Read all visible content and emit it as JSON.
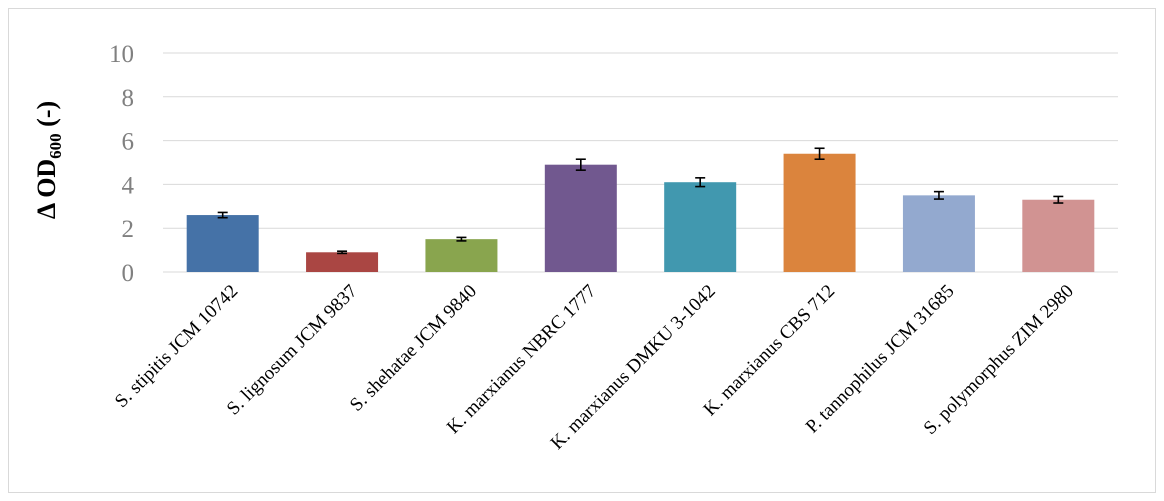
{
  "chart_data": {
    "type": "bar",
    "title": "",
    "xlabel": "",
    "ylabel": "Δ OD",
    "ylabel_subscript": "600",
    "ylabel_suffix": " (-)",
    "ylim": [
      0,
      10
    ],
    "yticks": [
      0,
      2,
      4,
      6,
      8,
      10
    ],
    "grid": true,
    "legend": "none",
    "categories": [
      "S. stipitis JCM 10742",
      "S. lignosum JCM 9837",
      "S. shehatae JCM 9840",
      "K. marxianus NBRC 1777",
      "K. marxianus DMKU 3-1042",
      "K. marxianus CBS 712",
      "P. tannophilus JCM 31685",
      "S. polymorphus ZIM 2980"
    ],
    "values": [
      2.6,
      0.9,
      1.5,
      4.9,
      4.1,
      5.4,
      3.5,
      3.3
    ],
    "errors": [
      0.12,
      0.05,
      0.08,
      0.25,
      0.2,
      0.25,
      0.17,
      0.15
    ],
    "colors": [
      "#4572A7",
      "#AA4643",
      "#89A54E",
      "#71588F",
      "#4198AF",
      "#DB843D",
      "#93A9CF",
      "#D19392"
    ]
  }
}
